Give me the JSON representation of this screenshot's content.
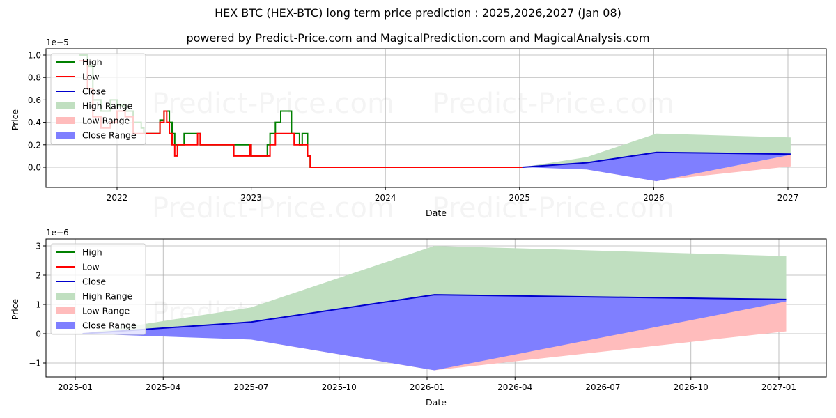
{
  "header": {
    "title": "HEX BTC (HEX-BTC) long term price prediction : 2025,2026,2027 (Jan 08)",
    "subtitle": "powered by Predict-Price.com and MagicalPrediction.com and MagicalAnalysis.com"
  },
  "watermark": "Predict-Price.com",
  "colors": {
    "high": "#008000",
    "low": "#ff0000",
    "close": "#0000cc",
    "high_range": "#c0dfc0",
    "low_range": "#ffbcbc",
    "close_range": "#7f7fff",
    "grid": "#b0b0b0"
  },
  "legend": [
    {
      "label": "High",
      "type": "line",
      "color_key": "high"
    },
    {
      "label": "Low",
      "type": "line",
      "color_key": "low"
    },
    {
      "label": "Close",
      "type": "line",
      "color_key": "close"
    },
    {
      "label": "High Range",
      "type": "patch",
      "color_key": "high_range"
    },
    {
      "label": "Low Range",
      "type": "patch",
      "color_key": "low_range"
    },
    {
      "label": "Close Range",
      "type": "patch",
      "color_key": "close_range"
    }
  ],
  "chart_data": [
    {
      "type": "line",
      "title": "HEX BTC (HEX-BTC) long term price prediction : 2025,2026,2027 (Jan 08)",
      "xlabel": "Date",
      "ylabel": "Price",
      "y_scale_note": "1e−5",
      "ylim": [
        -0.18,
        1.02
      ],
      "y_ticks": [
        1.0,
        0.8,
        0.6,
        0.4,
        0.2,
        0.0
      ],
      "y_tick_labels": [
        "1.0",
        "0.8",
        "0.6",
        "0.4",
        "0.2",
        "0.0"
      ],
      "x_tick_labels": [
        "2022",
        "2023",
        "2024",
        "2025",
        "2026",
        "2027"
      ],
      "x_ticks_year": [
        2022,
        2023,
        2024,
        2025,
        2026,
        2027
      ],
      "xlim_year": [
        2021.5,
        2027.28
      ],
      "grid": true,
      "legend_position": "upper left",
      "history": {
        "x_year": [
          2021.72,
          2021.78,
          2021.82,
          2021.88,
          2021.95,
          2022.0,
          2022.06,
          2022.12,
          2022.18,
          2022.2,
          2022.3,
          2022.32,
          2022.35,
          2022.37,
          2022.39,
          2022.41,
          2022.43,
          2022.45,
          2022.48,
          2022.5,
          2022.6,
          2022.62,
          2022.65,
          2022.85,
          2022.87,
          2022.99,
          2023.0,
          2023.12,
          2023.14,
          2023.18,
          2023.22,
          2023.3,
          2023.32,
          2023.36,
          2023.38,
          2023.42,
          2023.44,
          2025.02
        ],
        "high": [
          1.0,
          0.9,
          0.6,
          0.5,
          0.6,
          0.55,
          0.5,
          0.4,
          0.35,
          0.3,
          0.3,
          0.42,
          0.5,
          0.5,
          0.4,
          0.3,
          0.2,
          0.2,
          0.2,
          0.3,
          0.3,
          0.2,
          0.2,
          0.2,
          0.2,
          0.2,
          0.1,
          0.2,
          0.3,
          0.4,
          0.5,
          0.3,
          0.3,
          0.2,
          0.3,
          0.1,
          0.0,
          0.0
        ],
        "low": [
          0.95,
          0.7,
          0.45,
          0.35,
          0.4,
          0.5,
          0.45,
          0.3,
          0.3,
          0.3,
          0.3,
          0.4,
          0.5,
          0.4,
          0.3,
          0.2,
          0.1,
          0.2,
          0.2,
          0.2,
          0.3,
          0.2,
          0.2,
          0.2,
          0.1,
          0.2,
          0.1,
          0.1,
          0.2,
          0.3,
          0.3,
          0.3,
          0.2,
          0.2,
          0.2,
          0.1,
          0.0,
          0.0
        ]
      },
      "forecast": {
        "x_year": [
          2025.02,
          2025.5,
          2026.02,
          2027.02
        ],
        "close": [
          0.0,
          0.04,
          0.132,
          0.117
        ],
        "high_upper": [
          0.0,
          0.09,
          0.3,
          0.265
        ],
        "low_lower": [
          0.0,
          -0.02,
          -0.12,
          0.008
        ],
        "close_lower": [
          0.0,
          -0.02,
          -0.125,
          0.11
        ]
      }
    },
    {
      "type": "line",
      "title": "",
      "xlabel": "Date",
      "ylabel": "Price",
      "y_scale_note": "1e−6",
      "ylim": [
        -1.5,
        3.2
      ],
      "y_ticks": [
        3,
        2,
        1,
        0,
        -1
      ],
      "y_tick_labels": [
        "3",
        "2",
        "1",
        "0",
        "−1"
      ],
      "x_tick_labels": [
        "2025-01",
        "2025-04",
        "2025-07",
        "2025-10",
        "2026-01",
        "2026-04",
        "2026-07",
        "2026-10",
        "2027-01"
      ],
      "x_ticks_month_index": [
        0,
        3,
        6,
        9,
        12,
        15,
        18,
        21,
        24
      ],
      "xlim_month_index": [
        -1.4,
        25.4
      ],
      "grid": true,
      "legend_position": "upper left",
      "forecast": {
        "x_month_index": [
          0.25,
          6.0,
          12.25,
          24.25
        ],
        "x_labels": [
          "2025-01-08",
          "2025-07-01",
          "2026-01-08",
          "2027-01-08"
        ],
        "close": [
          0.0,
          0.4,
          1.33,
          1.17
        ],
        "high_upper": [
          0.0,
          0.9,
          3.0,
          2.65
        ],
        "low_upper": [
          0.0,
          -0.2,
          -1.2,
          1.1
        ],
        "low_lower": [
          0.0,
          -0.2,
          -1.25,
          0.08
        ],
        "close_lower": [
          0.0,
          -0.2,
          -1.25,
          1.1
        ]
      }
    }
  ]
}
